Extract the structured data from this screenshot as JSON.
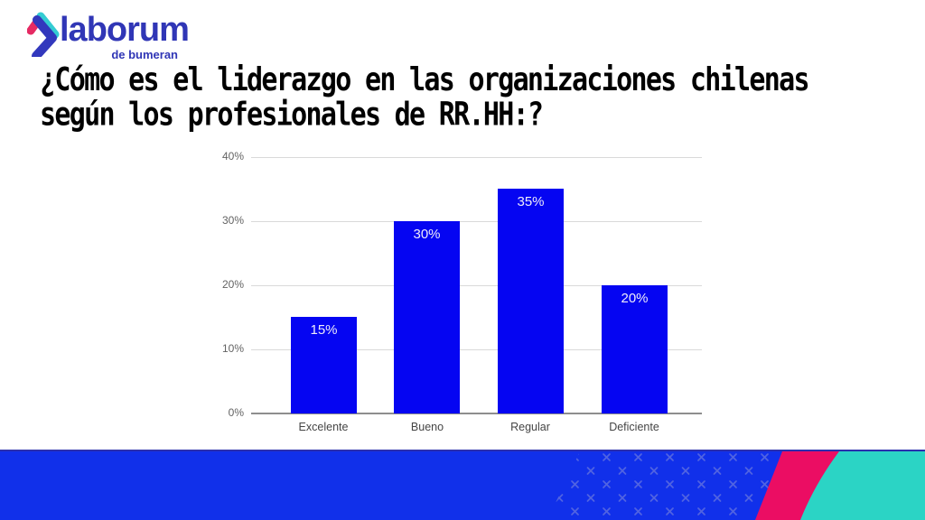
{
  "logo": {
    "brand": "laborum",
    "subtitle": "de bumeran",
    "text_color": "#3036b6",
    "chevron_blue": "#3238bd",
    "chevron_teal": "#34ccd3",
    "chevron_pink": "#e52a63"
  },
  "title": {
    "line1": "¿Cómo es el liderazgo en las organizaciones chilenas",
    "line2": "según los profesionales de RR.HH:?"
  },
  "chart_data": {
    "type": "bar",
    "title": "",
    "xlabel": "",
    "ylabel": "",
    "categories": [
      "Excelente",
      "Bueno",
      "Regular",
      "Deficiente"
    ],
    "values": [
      15,
      30,
      35,
      20
    ],
    "value_labels": [
      "15%",
      "30%",
      "35%",
      "20%"
    ],
    "y_ticks": [
      "40%",
      "30%",
      "20%",
      "10%",
      "0%"
    ],
    "ylim": [
      0,
      40
    ],
    "grid": true,
    "legend_position": "none",
    "bar_color": "#0505f2",
    "value_label_color": "#eeecfa",
    "gridline_color": "#d9d9d9",
    "axis_line_color": "#8e8e8e"
  },
  "footer": {
    "band_color": "#1130ea",
    "band_top_border_color": "#2b2fae",
    "stripe_color": "#eb0d63",
    "corner_color": "#2bd4c5",
    "pattern_color": "#5b6ce0"
  }
}
